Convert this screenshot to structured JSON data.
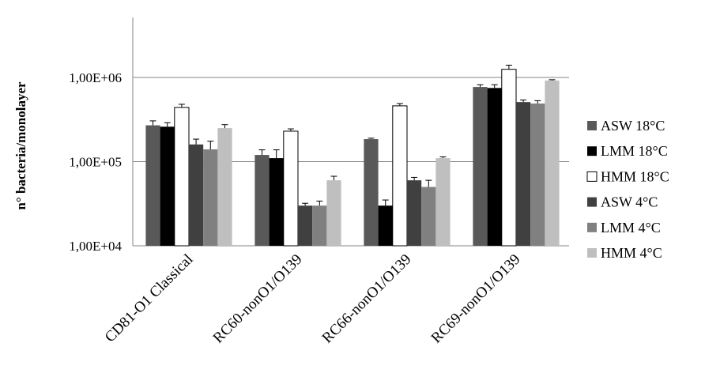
{
  "chart_data": {
    "type": "bar",
    "ylabel": "n° bacteria/monolayer",
    "xlabel": "",
    "yscale": "log",
    "ylim": [
      10000,
      10000000
    ],
    "ytick_values": [
      10000,
      100000,
      1000000
    ],
    "ytick_labels": [
      "1,00E+04",
      "1,00E+05",
      "1,00E+06"
    ],
    "grid": "horizontal",
    "legend_position": "right",
    "categories": [
      "CD81-O1 Classical",
      "RC60-nonO1/O139",
      "RC66-nonO1/O139",
      "RC69-nonO1/O139"
    ],
    "series": [
      {
        "name": "ASW 18°C",
        "color": "#595959",
        "values": [
          270000,
          120000,
          185000,
          770000
        ],
        "errors": [
          35000,
          18000,
          5000,
          50000
        ]
      },
      {
        "name": "LMM 18°C",
        "color": "#000000",
        "values": [
          260000,
          110000,
          30000,
          750000
        ],
        "errors": [
          30000,
          28000,
          5000,
          70000
        ]
      },
      {
        "name": "HMM 18°C",
        "color": "#ffffff",
        "values": [
          440000,
          230000,
          460000,
          1250000
        ],
        "errors": [
          40000,
          15000,
          30000,
          150000
        ]
      },
      {
        "name": "ASW 4°C",
        "color": "#404040",
        "values": [
          160000,
          30000,
          60000,
          510000
        ],
        "errors": [
          25000,
          2000,
          5000,
          30000
        ]
      },
      {
        "name": "LMM 4°C",
        "color": "#808080",
        "values": [
          140000,
          30000,
          50000,
          490000
        ],
        "errors": [
          35000,
          4000,
          10000,
          40000
        ]
      },
      {
        "name": "HMM 4°C",
        "color": "#bfbfbf",
        "values": [
          250000,
          60000,
          110000,
          920000
        ],
        "errors": [
          25000,
          7000,
          4000,
          20000
        ]
      }
    ]
  }
}
